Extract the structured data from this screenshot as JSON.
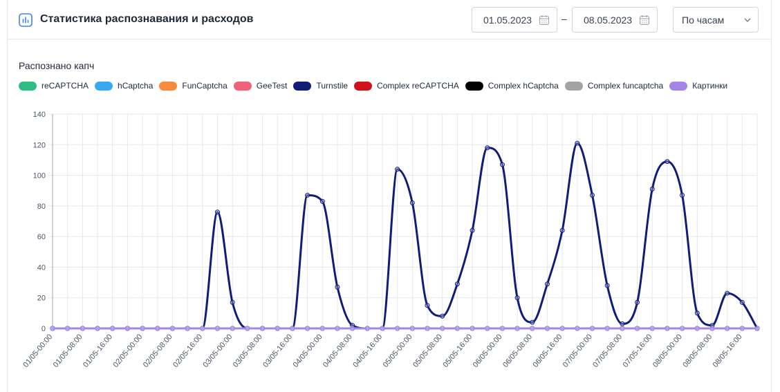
{
  "header": {
    "title": "Статистика распознавания и расходов",
    "date_from": "01.05.2023",
    "date_separator": "–",
    "date_to": "08.05.2023",
    "interval_select": "По часам"
  },
  "section": {
    "title": "Распознано капч"
  },
  "icons": {
    "title_icon": "bar-chart-icon",
    "date_icon": "calendar-icon",
    "select_icon": "chevron-down-icon"
  },
  "colors": {
    "accent": "#3b82f6",
    "grid": "#e5e7eb",
    "axis": "#9ca3af"
  },
  "chart_data": {
    "type": "line",
    "title": "Распознано капч",
    "xlabel": "",
    "ylabel": "",
    "ylim": [
      0,
      140
    ],
    "yticks": [
      0,
      20,
      40,
      60,
      80,
      100,
      120,
      140
    ],
    "grid": true,
    "legend_position": "top-left",
    "x": [
      "01/05-00:00",
      "01/05-04:00",
      "01/05-08:00",
      "01/05-12:00",
      "01/05-16:00",
      "01/05-20:00",
      "02/05-00:00",
      "02/05-04:00",
      "02/05-08:00",
      "02/05-12:00",
      "02/05-16:00",
      "02/05-20:00",
      "03/05-00:00",
      "03/05-04:00",
      "03/05-08:00",
      "03/05-12:00",
      "03/05-16:00",
      "03/05-20:00",
      "04/05-00:00",
      "04/05-04:00",
      "04/05-08:00",
      "04/05-12:00",
      "04/05-16:00",
      "04/05-20:00",
      "05/05-00:00",
      "05/05-04:00",
      "05/05-08:00",
      "05/05-12:00",
      "05/05-16:00",
      "05/05-20:00",
      "06/05-00:00",
      "06/05-04:00",
      "06/05-08:00",
      "06/05-12:00",
      "06/05-16:00",
      "06/05-20:00",
      "07/05-00:00",
      "07/05-04:00",
      "07/05-08:00",
      "07/05-12:00",
      "07/05-16:00",
      "07/05-20:00",
      "08/05-00:00",
      "08/05-04:00",
      "08/05-08:00",
      "08/05-12:00",
      "08/05-16:00",
      "08/05-20:00"
    ],
    "x_tick_labels": [
      "01/05-00:00",
      "01/05-08:00",
      "01/05-16:00",
      "02/05-00:00",
      "02/05-08:00",
      "02/05-16:00",
      "03/05-00:00",
      "03/05-08:00",
      "03/05-16:00",
      "04/05-00:00",
      "04/05-08:00",
      "04/05-16:00",
      "05/05-00:00",
      "05/05-08:00",
      "05/05-16:00",
      "06/05-00:00",
      "06/05-08:00",
      "06/05-16:00",
      "07/05-00:00",
      "07/05-08:00",
      "07/05-16:00",
      "08/05-00:00",
      "08/05-08:00",
      "08/05-16:00"
    ],
    "series": [
      {
        "name": "reCAPTCHA",
        "color": "#2ebd85",
        "values": [
          0,
          0,
          0,
          0,
          0,
          0,
          0,
          0,
          0,
          0,
          0,
          0,
          0,
          0,
          0,
          0,
          0,
          0,
          0,
          0,
          0,
          0,
          0,
          0,
          0,
          0,
          0,
          0,
          0,
          0,
          0,
          0,
          0,
          0,
          0,
          0,
          0,
          0,
          0,
          0,
          0,
          0,
          0,
          0,
          0,
          0,
          0,
          0
        ]
      },
      {
        "name": "hCaptcha",
        "color": "#36a9f2",
        "values": [
          0,
          0,
          0,
          0,
          0,
          0,
          0,
          0,
          0,
          0,
          0,
          0,
          0,
          0,
          0,
          0,
          0,
          0,
          0,
          0,
          0,
          0,
          0,
          0,
          0,
          0,
          0,
          0,
          0,
          0,
          0,
          0,
          0,
          0,
          0,
          0,
          0,
          0,
          0,
          0,
          0,
          0,
          0,
          0,
          0,
          0,
          0,
          0
        ]
      },
      {
        "name": "FunCaptcha",
        "color": "#f78b3c",
        "values": [
          0,
          0,
          0,
          0,
          0,
          0,
          0,
          0,
          0,
          0,
          0,
          0,
          0,
          0,
          0,
          0,
          0,
          0,
          0,
          0,
          0,
          0,
          0,
          0,
          0,
          0,
          0,
          0,
          0,
          0,
          0,
          0,
          0,
          0,
          0,
          0,
          0,
          0,
          0,
          0,
          0,
          0,
          0,
          0,
          0,
          0,
          0,
          0
        ]
      },
      {
        "name": "GeeTest",
        "color": "#f06277",
        "values": [
          0,
          0,
          0,
          0,
          0,
          0,
          0,
          0,
          0,
          0,
          0,
          0,
          0,
          0,
          0,
          0,
          0,
          0,
          0,
          0,
          0,
          0,
          0,
          0,
          0,
          0,
          0,
          0,
          0,
          0,
          0,
          0,
          0,
          0,
          0,
          0,
          0,
          0,
          0,
          0,
          0,
          0,
          0,
          0,
          0,
          0,
          0,
          0
        ]
      },
      {
        "name": "Turnstile",
        "color": "#0f1c78",
        "values": [
          0,
          0,
          0,
          0,
          0,
          0,
          0,
          0,
          0,
          0,
          0,
          76,
          17,
          0,
          0,
          0,
          0,
          87,
          83,
          27,
          2,
          0,
          0,
          104,
          82,
          15,
          8,
          29,
          64,
          118,
          107,
          20,
          4,
          29,
          64,
          121,
          87,
          28,
          3,
          17,
          91,
          109,
          87,
          10,
          2,
          23,
          17,
          0
        ]
      },
      {
        "name": "Complex reCAPTCHA",
        "color": "#d0101b",
        "values": [
          0,
          0,
          0,
          0,
          0,
          0,
          0,
          0,
          0,
          0,
          0,
          0,
          0,
          0,
          0,
          0,
          0,
          0,
          0,
          0,
          0,
          0,
          0,
          0,
          0,
          0,
          0,
          0,
          0,
          0,
          0,
          0,
          0,
          0,
          0,
          0,
          0,
          0,
          0,
          0,
          0,
          0,
          0,
          0,
          0,
          0,
          0,
          0
        ]
      },
      {
        "name": "Complex hCaptcha",
        "color": "#000000",
        "values": [
          0,
          0,
          0,
          0,
          0,
          0,
          0,
          0,
          0,
          0,
          0,
          0,
          0,
          0,
          0,
          0,
          0,
          0,
          0,
          0,
          0,
          0,
          0,
          0,
          0,
          0,
          0,
          0,
          0,
          0,
          0,
          0,
          0,
          0,
          0,
          0,
          0,
          0,
          0,
          0,
          0,
          0,
          0,
          0,
          0,
          0,
          0,
          0
        ]
      },
      {
        "name": "Complex funcaptcha",
        "color": "#a3a3a3",
        "values": [
          0,
          0,
          0,
          0,
          0,
          0,
          0,
          0,
          0,
          0,
          0,
          0,
          0,
          0,
          0,
          0,
          0,
          0,
          0,
          0,
          0,
          0,
          0,
          0,
          0,
          0,
          0,
          0,
          0,
          0,
          0,
          0,
          0,
          0,
          0,
          0,
          0,
          0,
          0,
          0,
          0,
          0,
          0,
          0,
          0,
          0,
          0,
          0
        ]
      },
      {
        "name": "Картинки",
        "color": "#a586e8",
        "values": [
          0,
          0,
          0,
          0,
          0,
          0,
          0,
          0,
          0,
          0,
          0,
          0,
          0,
          0,
          0,
          0,
          0,
          0,
          0,
          0,
          0,
          0,
          0,
          0,
          0,
          0,
          0,
          0,
          0,
          0,
          0,
          0,
          0,
          0,
          0,
          0,
          0,
          0,
          0,
          0,
          0,
          0,
          0,
          0,
          0,
          0,
          0,
          0
        ]
      }
    ]
  }
}
